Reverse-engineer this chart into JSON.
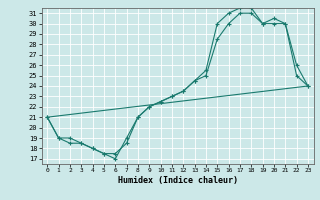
{
  "xlabel": "Humidex (Indice chaleur)",
  "bg_color": "#cce8e8",
  "grid_color": "#ffffff",
  "line_color": "#1a7a6e",
  "xlim": [
    -0.5,
    23.5
  ],
  "ylim": [
    16.5,
    31.5
  ],
  "xticks": [
    0,
    1,
    2,
    3,
    4,
    5,
    6,
    7,
    8,
    9,
    10,
    11,
    12,
    13,
    14,
    15,
    16,
    17,
    18,
    19,
    20,
    21,
    22,
    23
  ],
  "yticks": [
    17,
    18,
    19,
    20,
    21,
    22,
    23,
    24,
    25,
    26,
    27,
    28,
    29,
    30,
    31
  ],
  "line1_x": [
    0,
    1,
    2,
    3,
    4,
    5,
    6,
    7,
    8,
    9,
    10,
    11,
    12,
    13,
    14,
    15,
    16,
    17,
    18,
    19,
    20,
    21,
    22,
    23
  ],
  "line1_y": [
    21,
    19,
    19,
    18.5,
    18,
    17.5,
    17,
    19,
    21,
    22,
    22.5,
    23,
    23.5,
    24.5,
    25,
    28.5,
    30,
    31,
    31,
    30,
    30.5,
    30,
    26,
    24
  ],
  "line2_x": [
    0,
    1,
    2,
    3,
    4,
    5,
    6,
    7,
    8,
    9,
    10,
    11,
    12,
    13,
    14,
    15,
    16,
    17,
    18,
    19,
    20,
    21,
    22,
    23
  ],
  "line2_y": [
    21,
    19,
    18.5,
    18.5,
    18,
    17.5,
    17.5,
    18.5,
    21,
    22,
    22.5,
    23,
    23.5,
    24.5,
    25.5,
    30,
    31,
    31.5,
    31.5,
    30,
    30,
    30,
    25,
    24
  ],
  "line3_x": [
    0,
    23
  ],
  "line3_y": [
    21,
    24
  ]
}
